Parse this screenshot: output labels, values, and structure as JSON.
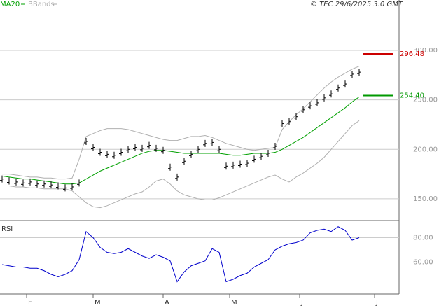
{
  "chart_data": [
    {
      "type": "ohlc",
      "source": "© TEC 29/6/2025 3:0 GMT",
      "categories": [
        null,
        null,
        null,
        null,
        null,
        null,
        null,
        null,
        null,
        null,
        null,
        null,
        null,
        null,
        null,
        null,
        null,
        null,
        null,
        null,
        null,
        null,
        null,
        null,
        null,
        null,
        null,
        null,
        null,
        null,
        null,
        null,
        null,
        null,
        null,
        null,
        null,
        null,
        null,
        null,
        null,
        null,
        null,
        null,
        null,
        null,
        null,
        null,
        null,
        null,
        null,
        null
      ],
      "values": [
        170,
        168,
        167,
        166,
        167,
        165,
        165,
        164,
        163,
        161,
        162,
        166,
        208,
        202,
        197,
        195,
        194,
        197,
        200,
        202,
        201,
        204,
        201,
        199,
        182,
        172,
        188,
        195,
        200,
        206,
        207,
        200,
        183,
        184,
        185,
        186,
        190,
        193,
        196,
        203,
        226,
        228,
        233,
        240,
        244,
        247,
        252,
        256,
        262,
        266,
        276,
        278
      ],
      "color": "#000000",
      "series": [
        {
          "name": "MA20",
          "color": "#00a000",
          "values": [
            173,
            172,
            171,
            170,
            170,
            169,
            168,
            167,
            166,
            165,
            165,
            166,
            170,
            174,
            178,
            181,
            184,
            187,
            190,
            193,
            196,
            198,
            199,
            199,
            198,
            197,
            196,
            196,
            196,
            196,
            196,
            196,
            195,
            194,
            194,
            195,
            196,
            196,
            196,
            197,
            200,
            204,
            208,
            212,
            217,
            222,
            227,
            232,
            237,
            242,
            248,
            253
          ]
        },
        {
          "name": "BBands",
          "color": "#b0b0b0",
          "upper": [
            175,
            175,
            174,
            173,
            172,
            172,
            171,
            171,
            170,
            170,
            171,
            190,
            213,
            216,
            219,
            221,
            221,
            221,
            220,
            218,
            216,
            214,
            212,
            210,
            209,
            209,
            211,
            213,
            213,
            214,
            212,
            209,
            206,
            204,
            202,
            200,
            199,
            200,
            201,
            202,
            220,
            228,
            235,
            241,
            248,
            255,
            262,
            268,
            273,
            277,
            281,
            284
          ],
          "lower": [
            163,
            163,
            162,
            162,
            161,
            161,
            160,
            160,
            160,
            160,
            158,
            152,
            146,
            142,
            141,
            143,
            146,
            149,
            152,
            155,
            157,
            162,
            168,
            170,
            165,
            158,
            154,
            152,
            150,
            149,
            149,
            151,
            154,
            157,
            160,
            163,
            166,
            169,
            172,
            174,
            170,
            167,
            172,
            176,
            181,
            186,
            192,
            200,
            208,
            216,
            224,
            229
          ]
        }
      ],
      "markers": [
        {
          "value": 296.48,
          "label": "296.48",
          "color": "#cc0000"
        },
        {
          "value": 254.4,
          "label": "254.40",
          "color": "#009900"
        }
      ],
      "ylim": [
        128,
        351
      ],
      "yticks": [
        {
          "value": 150,
          "label": "150.00"
        },
        {
          "value": 200,
          "label": "200.00"
        },
        {
          "value": 250,
          "label": "250.00"
        },
        {
          "value": 300,
          "label": "300.00"
        }
      ],
      "grid": true
    },
    {
      "type": "line",
      "title": "RSI",
      "color": "#0000cc",
      "values": [
        58,
        57,
        56,
        56,
        55,
        55,
        53,
        50,
        48,
        50,
        53,
        62,
        85,
        80,
        72,
        68,
        67,
        68,
        71,
        68,
        65,
        63,
        66,
        64,
        61,
        44,
        52,
        57,
        59,
        61,
        71,
        68,
        44,
        46,
        49,
        51,
        56,
        59,
        62,
        70,
        73,
        75,
        76,
        78,
        84,
        86,
        87,
        85,
        89,
        86,
        78,
        80
      ],
      "ylim": [
        34,
        94
      ],
      "yticks": [
        {
          "value": 60,
          "label": "60.00"
        },
        {
          "value": 80,
          "label": "80.00"
        }
      ],
      "xlim": [
        -0.3,
        56.7
      ],
      "xticks": [
        {
          "value": 3.5,
          "label": "F"
        },
        {
          "value": 13,
          "label": "M"
        },
        {
          "value": 23,
          "label": "A"
        },
        {
          "value": 32.5,
          "label": "M"
        },
        {
          "value": 42.5,
          "label": "J"
        },
        {
          "value": 53.2,
          "label": "J"
        }
      ],
      "grid": true
    }
  ]
}
